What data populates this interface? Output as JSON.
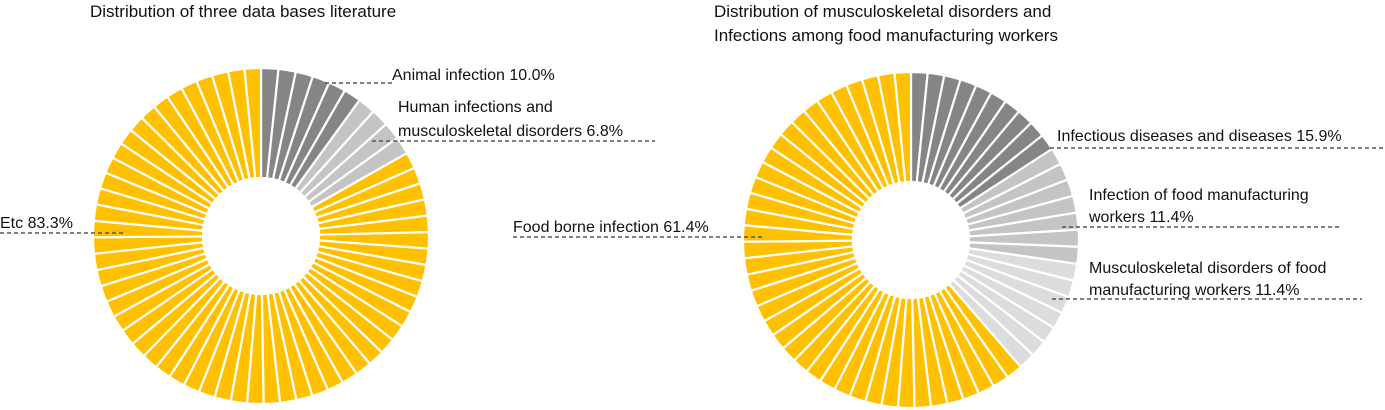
{
  "chart_data": [
    {
      "type": "pie",
      "title": "Distribution of three data bases literature",
      "slices": [
        {
          "label": "Animal infection",
          "value": 10.0,
          "text": "Animal infection 10.0%",
          "color": "#858585"
        },
        {
          "label": "Human infections and musculoskeletal disorders",
          "value": 6.8,
          "text": "Human infections and musculoskeletal disorders 6.8%",
          "text_lines": [
            "Human infections and",
            "musculoskeletal disorders 6.8%"
          ],
          "color": "#c4c4c4"
        },
        {
          "label": "Etc",
          "value": 83.3,
          "text": "Etc 83.3%",
          "color": "#ffc000"
        }
      ]
    },
    {
      "type": "pie",
      "title": "Distribution of musculoskeletal disorders and Infections among food manufacturing workers",
      "title_lines": [
        "Distribution of musculoskeletal disorders and",
        "Infections among food manufacturing workers"
      ],
      "slices": [
        {
          "label": "Infectious diseases and diseases",
          "value": 15.9,
          "text": "Infectious diseases and diseases 15.9%",
          "color": "#858585"
        },
        {
          "label": "Infection of food manufacturing workers",
          "value": 11.4,
          "text": "Infection of food manufacturing workers 11.4%",
          "text_lines": [
            "Infection of food manufacturing",
            "workers 11.4%"
          ],
          "color": "#c4c4c4"
        },
        {
          "label": "Musculoskeletal disorders of food manufacturing workers",
          "value": 11.4,
          "text": "Musculoskeletal disorders of food manufacturing workers 11.4%",
          "text_lines": [
            "Musculoskeletal disorders of food",
            "manufacturing workers 11.4%"
          ],
          "color": "#dcdcdc"
        },
        {
          "label": "Food borne infection",
          "value": 61.4,
          "text": "Food borne infection 61.4%",
          "color": "#ffc000"
        }
      ]
    }
  ]
}
